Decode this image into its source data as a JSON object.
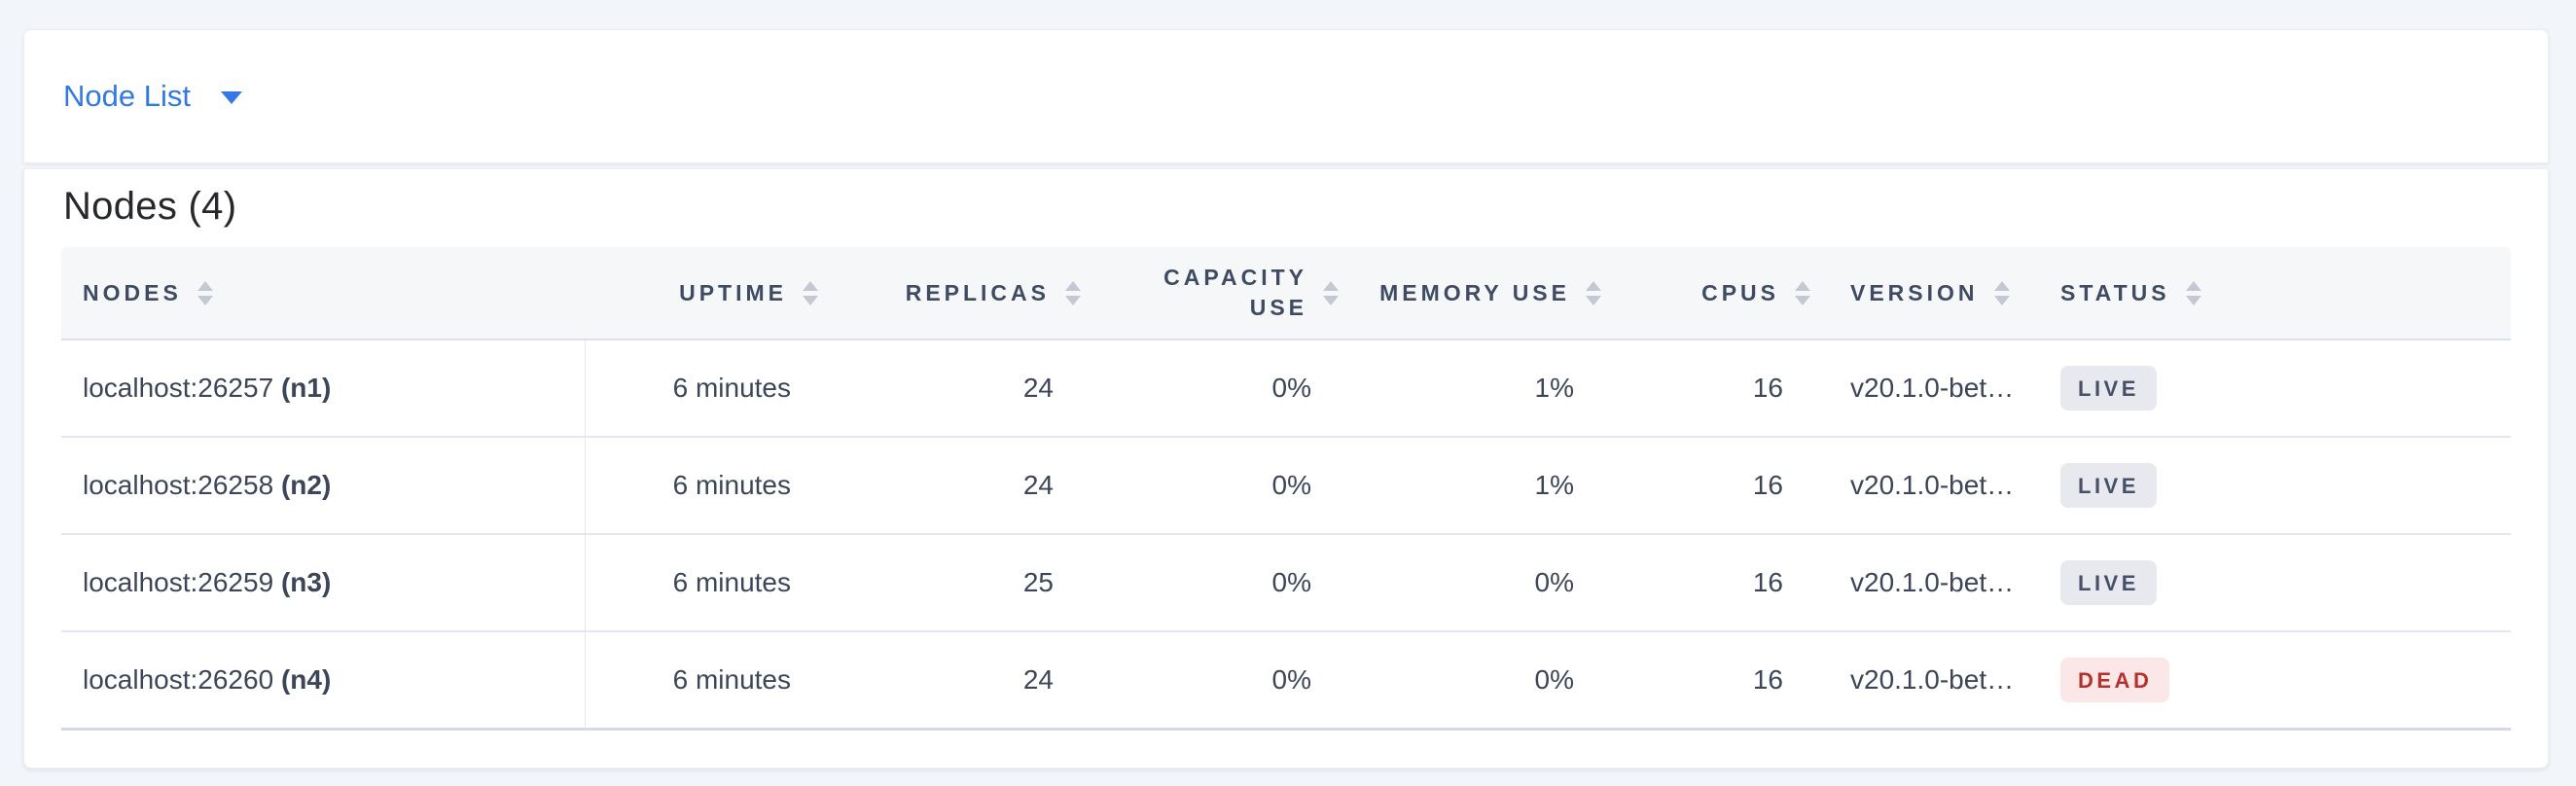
{
  "topbar": {
    "dropdown_label": "Node List"
  },
  "main": {
    "title": "Nodes (4)",
    "table": {
      "columns": [
        {
          "label": "NODES",
          "align": "left"
        },
        {
          "label": "UPTIME",
          "align": "right"
        },
        {
          "label": "REPLICAS",
          "align": "right"
        },
        {
          "label": "CAPACITY USE",
          "align": "right",
          "wrap": true
        },
        {
          "label": "MEMORY USE",
          "align": "right"
        },
        {
          "label": "CPUS",
          "align": "right"
        },
        {
          "label": "VERSION",
          "align": "left"
        },
        {
          "label": "STATUS",
          "align": "left"
        }
      ],
      "rows": [
        {
          "node": "localhost:26257",
          "node_id": "(n1)",
          "uptime": "6 minutes",
          "replicas": "24",
          "capacity_use": "0%",
          "memory_use": "1%",
          "cpus": "16",
          "version": "v20.1.0-bet…",
          "status": "LIVE"
        },
        {
          "node": "localhost:26258",
          "node_id": "(n2)",
          "uptime": "6 minutes",
          "replicas": "24",
          "capacity_use": "0%",
          "memory_use": "1%",
          "cpus": "16",
          "version": "v20.1.0-bet…",
          "status": "LIVE"
        },
        {
          "node": "localhost:26259",
          "node_id": "(n3)",
          "uptime": "6 minutes",
          "replicas": "25",
          "capacity_use": "0%",
          "memory_use": "0%",
          "cpus": "16",
          "version": "v20.1.0-bet…",
          "status": "LIVE"
        },
        {
          "node": "localhost:26260",
          "node_id": "(n4)",
          "uptime": "6 minutes",
          "replicas": "24",
          "capacity_use": "0%",
          "memory_use": "0%",
          "cpus": "16",
          "version": "v20.1.0-bet…",
          "status": "DEAD"
        }
      ]
    }
  },
  "colors": {
    "page_background": "#f2f5f9",
    "link_blue": "#3379e6",
    "header_text": "#3f4a63",
    "cell_text": "#3c4658",
    "badge_live_bg": "#e7e9ef",
    "badge_live_text": "#475068",
    "badge_dead_bg": "#fbe7e7",
    "badge_dead_text": "#b5312c"
  }
}
